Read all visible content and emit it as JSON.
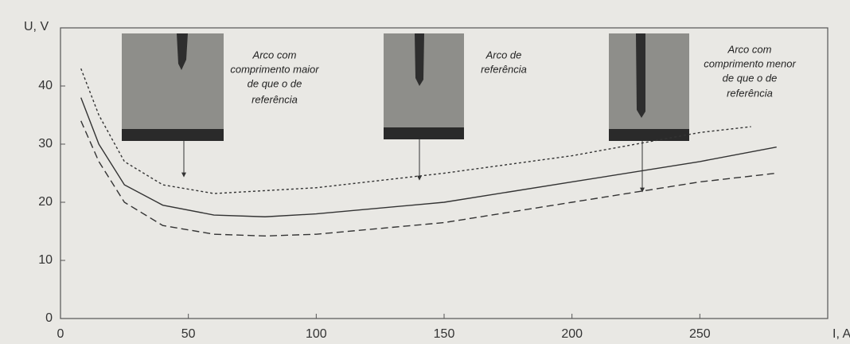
{
  "chart_data": {
    "type": "line",
    "x_label": "I, A",
    "y_label": "U, V",
    "xlim": [
      0,
      300
    ],
    "ylim": [
      0,
      50
    ],
    "xticks": [
      0,
      50,
      100,
      150,
      200,
      250
    ],
    "yticks": [
      0,
      10,
      20,
      30,
      40
    ],
    "series": [
      {
        "style": "dotted",
        "color": "#333333",
        "x": [
          8,
          15,
          25,
          40,
          60,
          80,
          100,
          150,
          200,
          250,
          270
        ],
        "values": [
          43,
          35,
          27,
          23,
          21.5,
          22,
          22.5,
          25,
          28,
          32,
          33
        ]
      },
      {
        "style": "solid",
        "color": "#333333",
        "x": [
          8,
          15,
          25,
          40,
          60,
          80,
          100,
          150,
          200,
          250,
          280
        ],
        "values": [
          38,
          30,
          23,
          19.5,
          17.8,
          17.5,
          18,
          20,
          23.5,
          27,
          29.5
        ]
      },
      {
        "style": "dashed",
        "color": "#333333",
        "x": [
          8,
          15,
          25,
          40,
          60,
          80,
          100,
          150,
          200,
          250,
          280
        ],
        "values": [
          34,
          27,
          20,
          16,
          14.5,
          14.2,
          14.5,
          16.5,
          20,
          23.5,
          25
        ]
      }
    ]
  },
  "annotations": [
    {
      "lines": [
        "Arco com",
        "comprimento maior",
        "de que o de",
        "referência"
      ]
    },
    {
      "lines": [
        "Arco de",
        "referência"
      ]
    },
    {
      "lines": [
        "Arco com",
        "comprimento menor",
        "de que o de",
        "referência"
      ]
    }
  ]
}
